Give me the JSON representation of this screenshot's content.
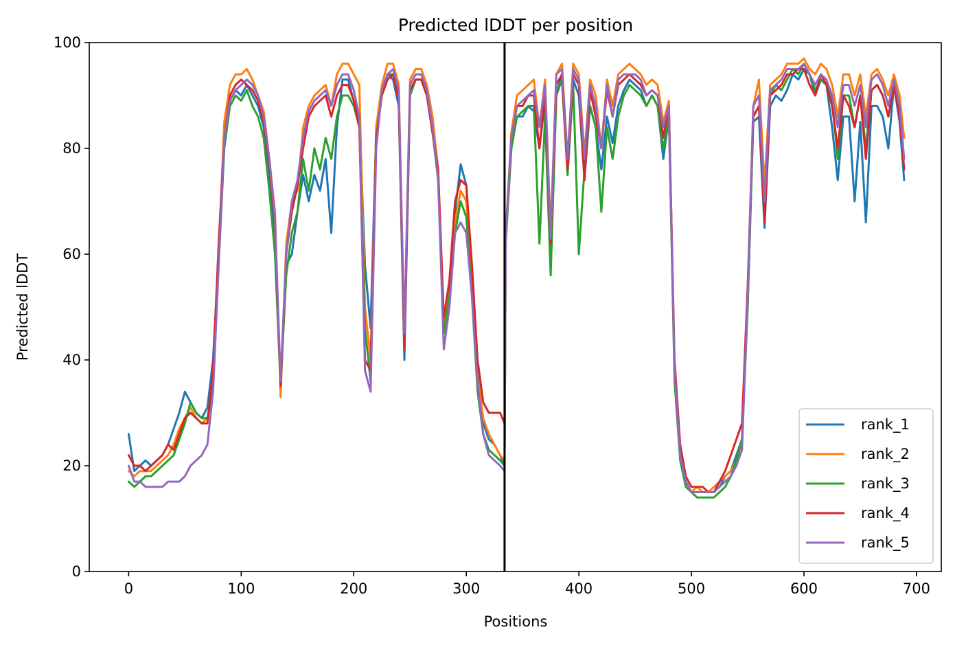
{
  "chart_data": {
    "type": "line",
    "title": "Predicted lDDT per position",
    "xlabel": "Positions",
    "ylabel": "Predicted lDDT",
    "xlim": [
      -35,
      722
    ],
    "ylim": [
      0,
      100
    ],
    "xticks": [
      0,
      100,
      200,
      300,
      400,
      500,
      600,
      700
    ],
    "yticks": [
      0,
      20,
      40,
      60,
      80,
      100
    ],
    "grid": false,
    "legend_position": "lower-right",
    "vertical_line_x": 334,
    "colors": [
      "#1f77b4",
      "#ff7f0e",
      "#2ca02c",
      "#d62728",
      "#9467bd"
    ],
    "x": [
      0,
      5,
      10,
      15,
      20,
      25,
      30,
      35,
      40,
      45,
      50,
      55,
      60,
      65,
      70,
      75,
      80,
      85,
      90,
      95,
      100,
      105,
      110,
      115,
      120,
      125,
      130,
      135,
      140,
      145,
      150,
      155,
      160,
      165,
      170,
      175,
      180,
      185,
      190,
      195,
      200,
      205,
      210,
      215,
      220,
      225,
      230,
      235,
      240,
      245,
      250,
      255,
      260,
      265,
      270,
      275,
      280,
      285,
      290,
      295,
      300,
      305,
      310,
      315,
      320,
      325,
      330,
      334,
      335,
      340,
      345,
      350,
      355,
      360,
      365,
      370,
      375,
      380,
      385,
      390,
      395,
      400,
      405,
      410,
      415,
      420,
      425,
      430,
      435,
      440,
      445,
      450,
      455,
      460,
      465,
      470,
      475,
      480,
      485,
      490,
      495,
      500,
      505,
      510,
      515,
      520,
      525,
      530,
      535,
      540,
      545,
      550,
      555,
      560,
      565,
      570,
      575,
      580,
      585,
      590,
      595,
      600,
      605,
      610,
      615,
      620,
      625,
      630,
      635,
      640,
      645,
      650,
      655,
      660,
      665,
      670,
      675,
      680,
      685,
      689
    ],
    "series": [
      {
        "name": "rank_1",
        "values": [
          26,
          19,
          20,
          21,
          20,
          21,
          22,
          24,
          27,
          30,
          34,
          32,
          30,
          29,
          31,
          40,
          60,
          82,
          89,
          91,
          90,
          92,
          90,
          88,
          84,
          74,
          64,
          36,
          58,
          60,
          68,
          75,
          70,
          75,
          72,
          78,
          64,
          84,
          93,
          93,
          89,
          86,
          58,
          46,
          84,
          91,
          94,
          93,
          88,
          40,
          90,
          93,
          93,
          90,
          83,
          75,
          45,
          52,
          68,
          77,
          73,
          56,
          38,
          28,
          25,
          24,
          22,
          20,
          63,
          80,
          86,
          86,
          88,
          87,
          80,
          89,
          60,
          90,
          94,
          75,
          93,
          90,
          74,
          88,
          84,
          76,
          86,
          81,
          88,
          91,
          93,
          92,
          91,
          88,
          90,
          88,
          78,
          86,
          38,
          22,
          17,
          15,
          15,
          15,
          15,
          15,
          16,
          18,
          19,
          22,
          25,
          50,
          85,
          86,
          65,
          88,
          90,
          89,
          91,
          94,
          93,
          95,
          94,
          90,
          93,
          92,
          84,
          74,
          86,
          86,
          70,
          85,
          66,
          88,
          88,
          86,
          80,
          92,
          85,
          74
        ]
      },
      {
        "name": "rank_2",
        "values": [
          19,
          18,
          19,
          19,
          19,
          20,
          21,
          22,
          24,
          27,
          29,
          31,
          29,
          28,
          29,
          35,
          60,
          85,
          92,
          94,
          94,
          95,
          93,
          90,
          87,
          78,
          68,
          33,
          62,
          70,
          72,
          84,
          88,
          90,
          91,
          92,
          88,
          94,
          96,
          96,
          94,
          92,
          50,
          40,
          84,
          92,
          96,
          96,
          92,
          44,
          93,
          95,
          95,
          92,
          86,
          76,
          47,
          53,
          66,
          72,
          70,
          54,
          37,
          29,
          26,
          24,
          22,
          21,
          63,
          83,
          90,
          91,
          92,
          93,
          84,
          93,
          64,
          94,
          96,
          78,
          96,
          94,
          79,
          93,
          90,
          80,
          93,
          88,
          94,
          95,
          96,
          95,
          94,
          92,
          93,
          92,
          85,
          89,
          38,
          22,
          17,
          15,
          16,
          15,
          15,
          16,
          17,
          18,
          19,
          21,
          24,
          52,
          88,
          93,
          73,
          92,
          93,
          94,
          96,
          96,
          96,
          97,
          95,
          94,
          96,
          95,
          92,
          86,
          94,
          94,
          90,
          94,
          86,
          94,
          95,
          93,
          90,
          94,
          90,
          82
        ]
      },
      {
        "name": "rank_3",
        "values": [
          17,
          16,
          17,
          18,
          18,
          19,
          20,
          21,
          22,
          25,
          28,
          32,
          30,
          29,
          29,
          34,
          58,
          80,
          88,
          90,
          89,
          91,
          88,
          86,
          82,
          72,
          60,
          35,
          56,
          64,
          68,
          78,
          72,
          80,
          76,
          82,
          78,
          86,
          90,
          90,
          88,
          84,
          46,
          36,
          82,
          90,
          94,
          94,
          90,
          42,
          90,
          93,
          93,
          90,
          83,
          74,
          45,
          52,
          64,
          70,
          67,
          52,
          34,
          26,
          23,
          22,
          21,
          20,
          62,
          80,
          86,
          87,
          88,
          88,
          62,
          86,
          56,
          90,
          93,
          75,
          92,
          60,
          76,
          88,
          84,
          68,
          84,
          78,
          86,
          90,
          92,
          91,
          90,
          88,
          90,
          88,
          80,
          86,
          36,
          21,
          16,
          15,
          14,
          14,
          14,
          14,
          15,
          16,
          18,
          21,
          25,
          50,
          86,
          88,
          70,
          90,
          92,
          91,
          93,
          95,
          94,
          96,
          94,
          91,
          93,
          92,
          89,
          78,
          90,
          90,
          84,
          90,
          80,
          91,
          92,
          90,
          86,
          92,
          88,
          76
        ]
      },
      {
        "name": "rank_4",
        "values": [
          22,
          20,
          20,
          19,
          20,
          21,
          22,
          24,
          23,
          26,
          29,
          30,
          29,
          28,
          28,
          38,
          62,
          82,
          90,
          92,
          93,
          92,
          91,
          89,
          85,
          77,
          66,
          35,
          60,
          68,
          73,
          80,
          86,
          88,
          89,
          90,
          86,
          90,
          92,
          92,
          89,
          84,
          40,
          38,
          82,
          90,
          93,
          94,
          89,
          42,
          91,
          93,
          93,
          90,
          83,
          76,
          48,
          55,
          70,
          74,
          73,
          58,
          40,
          32,
          30,
          30,
          30,
          28,
          64,
          82,
          88,
          88,
          90,
          90,
          80,
          90,
          62,
          92,
          94,
          76,
          94,
          92,
          74,
          91,
          86,
          80,
          91,
          86,
          92,
          93,
          94,
          93,
          92,
          90,
          91,
          90,
          82,
          88,
          40,
          24,
          18,
          16,
          16,
          16,
          15,
          15,
          17,
          19,
          22,
          25,
          28,
          54,
          86,
          88,
          66,
          90,
          91,
          92,
          94,
          94,
          95,
          95,
          92,
          90,
          94,
          92,
          88,
          80,
          90,
          88,
          84,
          90,
          78,
          91,
          92,
          90,
          86,
          92,
          86,
          76
        ]
      },
      {
        "name": "rank_5",
        "values": [
          20,
          17,
          17,
          16,
          16,
          16,
          16,
          17,
          17,
          17,
          18,
          20,
          21,
          22,
          24,
          34,
          58,
          82,
          89,
          91,
          92,
          93,
          92,
          90,
          86,
          78,
          67,
          36,
          60,
          70,
          74,
          82,
          87,
          89,
          90,
          91,
          88,
          92,
          94,
          94,
          91,
          86,
          38,
          34,
          80,
          91,
          94,
          95,
          91,
          45,
          92,
          94,
          94,
          91,
          84,
          74,
          42,
          50,
          64,
          66,
          64,
          52,
          36,
          26,
          22,
          21,
          20,
          19,
          63,
          82,
          88,
          89,
          90,
          91,
          84,
          92,
          63,
          94,
          95,
          78,
          95,
          93,
          78,
          92,
          88,
          80,
          92,
          86,
          93,
          94,
          94,
          94,
          93,
          90,
          91,
          90,
          84,
          88,
          38,
          22,
          17,
          15,
          15,
          15,
          15,
          15,
          16,
          17,
          18,
          20,
          23,
          52,
          88,
          90,
          70,
          91,
          92,
          93,
          95,
          95,
          95,
          96,
          94,
          92,
          94,
          93,
          90,
          84,
          92,
          92,
          88,
          92,
          84,
          93,
          94,
          92,
          88,
          93,
          88,
          78
        ]
      }
    ]
  }
}
